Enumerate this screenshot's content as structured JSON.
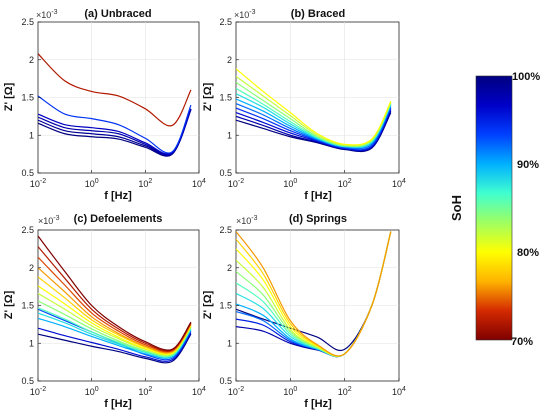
{
  "figure": {
    "colorbar": {
      "label": "SoH",
      "ticks": [
        "100%",
        "90%",
        "80%",
        "70%"
      ],
      "tick_values": [
        1.0,
        0.9,
        0.8,
        0.7
      ],
      "range": [
        0.7,
        1.0
      ],
      "colormap": [
        "#7f0000",
        "#d42a00",
        "#ffb300",
        "#ffff00",
        "#a0ff60",
        "#40ffd0",
        "#00b0ff",
        "#0040ff",
        "#0000c8",
        "#000080"
      ]
    },
    "curve_color_min_soh": "#7f0000",
    "curve_color_max_soh": "#000080"
  },
  "chart_data": [
    {
      "type": "line",
      "title": "(a) Unbraced",
      "xlabel": "f [Hz]",
      "ylabel": "Z' [Ω]",
      "y_exponent_label": "×10",
      "y_exponent": "-3",
      "x_scale": "log",
      "xlim": [
        0.01,
        10000
      ],
      "ylim": [
        0.5,
        2.5
      ],
      "x_ticks": [
        0.01,
        1,
        100,
        10000
      ],
      "x_tick_mantissa": [
        "10",
        "10",
        "10",
        "10"
      ],
      "x_tick_exponents": [
        "-2",
        "0",
        "2",
        "4"
      ],
      "y_ticks": [
        0.5,
        1,
        1.5,
        2,
        2.5
      ],
      "y_tick_labels": [
        "0.5",
        "1",
        "1.5",
        "2",
        "2.5"
      ],
      "grid": true,
      "x": [
        0.01,
        0.1,
        1,
        10,
        100,
        1000,
        5000
      ],
      "series": [
        {
          "soh": 0.72,
          "values": [
            2.08,
            1.72,
            1.58,
            1.52,
            1.35,
            1.13,
            1.6
          ]
        },
        {
          "soh": 0.94,
          "values": [
            1.52,
            1.28,
            1.22,
            1.14,
            0.96,
            0.78,
            1.4
          ]
        },
        {
          "soh": 0.97,
          "values": [
            1.28,
            1.14,
            1.1,
            1.05,
            0.9,
            0.77,
            1.35
          ]
        },
        {
          "soh": 0.98,
          "values": [
            1.24,
            1.1,
            1.06,
            1.02,
            0.88,
            0.76,
            1.35
          ]
        },
        {
          "soh": 0.99,
          "values": [
            1.2,
            1.06,
            1.02,
            0.98,
            0.86,
            0.75,
            1.34
          ]
        },
        {
          "soh": 1.0,
          "values": [
            1.16,
            1.02,
            0.98,
            0.95,
            0.84,
            0.75,
            1.34
          ]
        }
      ]
    },
    {
      "type": "line",
      "title": "(b) Braced",
      "xlabel": "f [Hz]",
      "ylabel": "Z' [Ω]",
      "y_exponent_label": "×10",
      "y_exponent": "-3",
      "x_scale": "log",
      "xlim": [
        0.01,
        10000
      ],
      "ylim": [
        0.5,
        2.5
      ],
      "x_ticks": [
        0.01,
        1,
        100,
        10000
      ],
      "x_tick_mantissa": [
        "10",
        "10",
        "10",
        "10"
      ],
      "x_tick_exponents": [
        "-2",
        "0",
        "2",
        "4"
      ],
      "y_ticks": [
        0.5,
        1,
        1.5,
        2,
        2.5
      ],
      "y_tick_labels": [
        "0.5",
        "1",
        "1.5",
        "2",
        "2.5"
      ],
      "grid": true,
      "x": [
        0.01,
        0.1,
        1,
        10,
        100,
        1000,
        5000
      ],
      "series": [
        {
          "soh": 0.8,
          "values": [
            1.88,
            1.58,
            1.3,
            1.02,
            0.88,
            0.95,
            1.45
          ]
        },
        {
          "soh": 0.82,
          "values": [
            1.78,
            1.52,
            1.26,
            1.0,
            0.87,
            0.94,
            1.44
          ]
        },
        {
          "soh": 0.84,
          "values": [
            1.7,
            1.46,
            1.22,
            0.98,
            0.86,
            0.93,
            1.43
          ]
        },
        {
          "soh": 0.86,
          "values": [
            1.62,
            1.41,
            1.18,
            0.97,
            0.86,
            0.92,
            1.42
          ]
        },
        {
          "soh": 0.88,
          "values": [
            1.55,
            1.37,
            1.15,
            0.96,
            0.85,
            0.91,
            1.41
          ]
        },
        {
          "soh": 0.9,
          "values": [
            1.48,
            1.32,
            1.12,
            0.95,
            0.85,
            0.9,
            1.4
          ]
        },
        {
          "soh": 0.92,
          "values": [
            1.42,
            1.27,
            1.09,
            0.94,
            0.84,
            0.88,
            1.38
          ]
        },
        {
          "soh": 0.94,
          "values": [
            1.36,
            1.22,
            1.06,
            0.93,
            0.83,
            0.86,
            1.36
          ]
        },
        {
          "soh": 0.96,
          "values": [
            1.3,
            1.17,
            1.03,
            0.92,
            0.82,
            0.85,
            1.34
          ]
        },
        {
          "soh": 0.98,
          "values": [
            1.25,
            1.13,
            1.0,
            0.91,
            0.82,
            0.84,
            1.32
          ]
        },
        {
          "soh": 1.0,
          "values": [
            1.2,
            1.09,
            0.98,
            0.9,
            0.81,
            0.83,
            1.3
          ]
        }
      ]
    },
    {
      "type": "line",
      "title": "(c) Defoelements",
      "xlabel": "f [Hz]",
      "ylabel": "Z' [Ω]",
      "y_exponent_label": "×10",
      "y_exponent": "-3",
      "x_scale": "log",
      "xlim": [
        0.01,
        10000
      ],
      "ylim": [
        0.5,
        2.5
      ],
      "x_ticks": [
        0.01,
        1,
        100,
        10000
      ],
      "x_tick_mantissa": [
        "10",
        "10",
        "10",
        "10"
      ],
      "x_tick_exponents": [
        "-2",
        "0",
        "2",
        "4"
      ],
      "y_ticks": [
        0.5,
        1,
        1.5,
        2,
        2.5
      ],
      "y_tick_labels": [
        "0.5",
        "1",
        "1.5",
        "2",
        "2.5"
      ],
      "grid": true,
      "x": [
        0.01,
        0.1,
        1,
        10,
        100,
        1000,
        5000
      ],
      "series": [
        {
          "soh": 0.7,
          "values": [
            2.42,
            1.95,
            1.5,
            1.22,
            1.02,
            0.92,
            1.28
          ]
        },
        {
          "soh": 0.72,
          "values": [
            2.28,
            1.86,
            1.45,
            1.19,
            1.0,
            0.91,
            1.27
          ]
        },
        {
          "soh": 0.74,
          "values": [
            2.14,
            1.77,
            1.4,
            1.16,
            0.98,
            0.9,
            1.26
          ]
        },
        {
          "soh": 0.76,
          "values": [
            2.0,
            1.68,
            1.35,
            1.13,
            0.96,
            0.89,
            1.25
          ]
        },
        {
          "soh": 0.78,
          "values": [
            1.88,
            1.6,
            1.31,
            1.11,
            0.95,
            0.88,
            1.24
          ]
        },
        {
          "soh": 0.8,
          "values": [
            1.76,
            1.52,
            1.27,
            1.08,
            0.93,
            0.87,
            1.23
          ]
        },
        {
          "soh": 0.82,
          "values": [
            1.66,
            1.45,
            1.23,
            1.06,
            0.92,
            0.86,
            1.22
          ]
        },
        {
          "soh": 0.84,
          "values": [
            1.56,
            1.38,
            1.19,
            1.03,
            0.9,
            0.85,
            1.21
          ]
        },
        {
          "soh": 0.86,
          "values": [
            1.47,
            1.32,
            1.15,
            1.01,
            0.89,
            0.84,
            1.2
          ]
        },
        {
          "soh": 0.88,
          "values": [
            1.4,
            1.27,
            1.12,
            0.99,
            0.88,
            0.83,
            1.19
          ]
        },
        {
          "soh": 0.9,
          "values": [
            1.33,
            1.22,
            1.09,
            0.97,
            0.86,
            0.82,
            1.18
          ]
        },
        {
          "soh": 0.93,
          "values": [
            1.45,
            1.3,
            1.15,
            1.0,
            0.85,
            0.8,
            1.16
          ]
        },
        {
          "soh": 0.96,
          "values": [
            1.2,
            1.1,
            1.01,
            0.92,
            0.82,
            0.78,
            1.14
          ]
        },
        {
          "soh": 1.0,
          "values": [
            1.12,
            1.04,
            0.96,
            0.89,
            0.8,
            0.76,
            1.12
          ]
        }
      ]
    },
    {
      "type": "line",
      "title": "(d) Springs",
      "xlabel": "f [Hz]",
      "ylabel": "Z' [Ω]",
      "y_exponent_label": "×10",
      "y_exponent": "-3",
      "x_scale": "log",
      "xlim": [
        0.01,
        10000
      ],
      "ylim": [
        0.5,
        2.5
      ],
      "x_ticks": [
        0.01,
        1,
        100,
        10000
      ],
      "x_tick_mantissa": [
        "10",
        "10",
        "10",
        "10"
      ],
      "x_tick_exponents": [
        "-2",
        "0",
        "2",
        "4"
      ],
      "y_ticks": [
        0.5,
        1,
        1.5,
        2,
        2.5
      ],
      "y_tick_labels": [
        "0.5",
        "1",
        "1.5",
        "2",
        "2.5"
      ],
      "grid": true,
      "x": [
        0.01,
        0.1,
        1,
        10,
        100,
        1000,
        5000
      ],
      "series": [
        {
          "soh": 0.76,
          "values": [
            2.48,
            2.0,
            1.3,
            0.98,
            0.86,
            1.5,
            2.48
          ]
        },
        {
          "soh": 0.78,
          "values": [
            2.38,
            1.92,
            1.26,
            0.97,
            0.86,
            1.5,
            2.48
          ]
        },
        {
          "soh": 0.8,
          "values": [
            2.25,
            1.84,
            1.22,
            0.96,
            0.86,
            1.5,
            2.48
          ]
        },
        {
          "soh": 0.82,
          "values": [
            2.1,
            1.74,
            1.18,
            0.95,
            0.86,
            1.5,
            2.48
          ]
        },
        {
          "soh": 0.84,
          "values": [
            1.95,
            1.64,
            1.15,
            0.94,
            0.86,
            1.5,
            2.48
          ]
        },
        {
          "soh": 0.86,
          "values": [
            1.8,
            1.55,
            1.12,
            0.93,
            0.86,
            1.5,
            2.48
          ]
        },
        {
          "soh": 0.88,
          "values": [
            1.66,
            1.46,
            1.09,
            0.93,
            0.86,
            1.5,
            2.48
          ]
        },
        {
          "soh": 0.9,
          "values": [
            1.52,
            1.37,
            1.06,
            0.92,
            0.86,
            1.5,
            2.48
          ]
        },
        {
          "soh": 0.92,
          "values": [
            1.42,
            1.3,
            1.04,
            0.92,
            0.86,
            1.5,
            2.48
          ]
        },
        {
          "soh": 0.95,
          "values": [
            1.32,
            1.24,
            1.02,
            0.92,
            0.86,
            1.5,
            2.48
          ]
        },
        {
          "soh": 0.98,
          "values": [
            1.22,
            1.16,
            1.0,
            0.91,
            0.86,
            1.5,
            2.48
          ]
        },
        {
          "soh": 1.0,
          "values": [
            1.45,
            1.32,
            1.2,
            1.08,
            0.92,
            1.5,
            2.48
          ]
        }
      ]
    }
  ]
}
